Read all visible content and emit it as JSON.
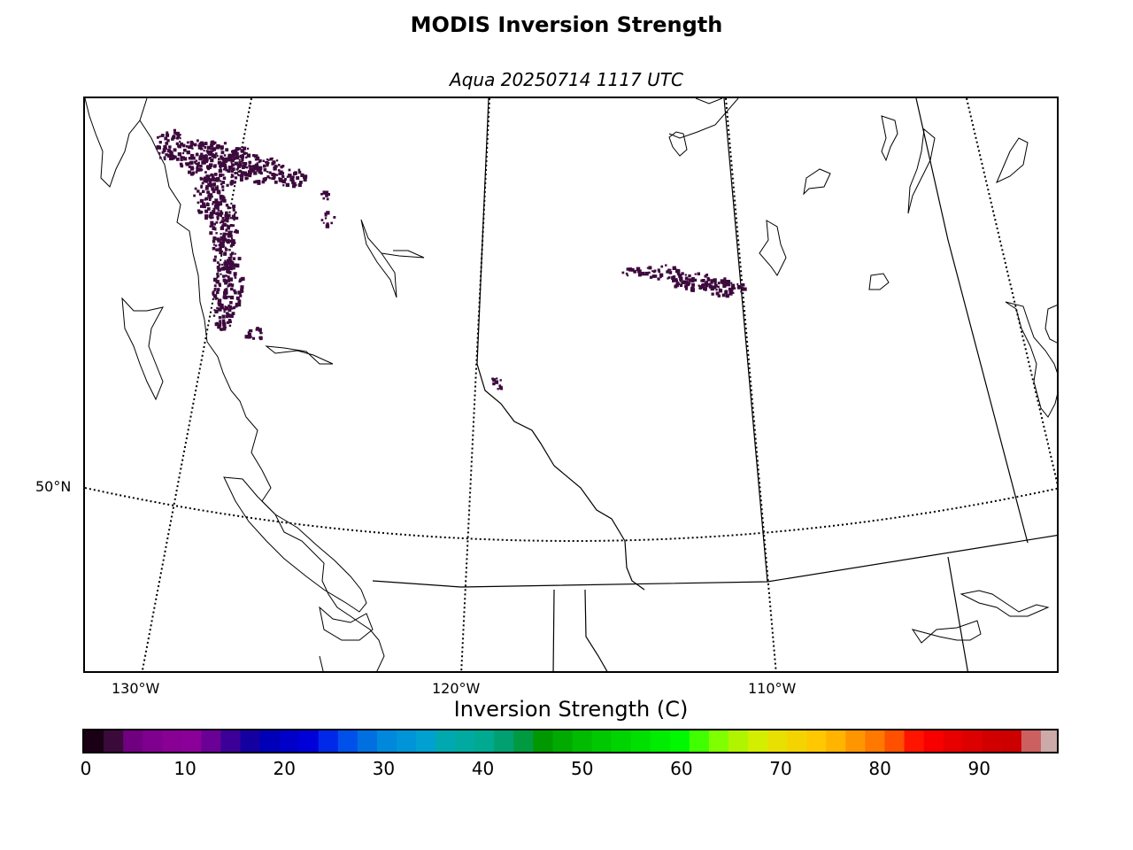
{
  "title": "MODIS Inversion Strength",
  "subtitle": "Aqua 20250714 1117 UTC",
  "map": {
    "lon_labels": [
      "130°W",
      "120°W",
      "110°W"
    ],
    "lat_labels": [
      "50°N"
    ]
  },
  "colorbar": {
    "label": "Inversion Strength (C)",
    "ticks": [
      "0",
      "10",
      "20",
      "30",
      "40",
      "50",
      "60",
      "70",
      "80",
      "90"
    ],
    "range": [
      0,
      98
    ],
    "colors": [
      "#1a0014",
      "#3a0a3a",
      "#700080",
      "#7f008e",
      "#880094",
      "#8c009a",
      "#6b0096",
      "#3c0099",
      "#1400a0",
      "#0000b8",
      "#0000c8",
      "#0000d8",
      "#0028e8",
      "#0050ea",
      "#0070e0",
      "#0088dc",
      "#0094d8",
      "#00a0d0",
      "#00a8b0",
      "#00aaa0",
      "#00aa90",
      "#00a070",
      "#009a40",
      "#009800",
      "#00aa00",
      "#00bb00",
      "#00c800",
      "#00d400",
      "#00e000",
      "#00ec00",
      "#00f800",
      "#40ff00",
      "#80ff00",
      "#b0f400",
      "#d4ee00",
      "#e8e000",
      "#f4d400",
      "#ffc800",
      "#ffb400",
      "#ff9600",
      "#ff7800",
      "#ff5000",
      "#ff1400",
      "#f80000",
      "#e80000",
      "#dc0000",
      "#d00000",
      "#cc0000",
      "#cc6060",
      "#ccaaaa"
    ]
  },
  "data_color": "#3d0a3d",
  "coast_color": "#000000"
}
